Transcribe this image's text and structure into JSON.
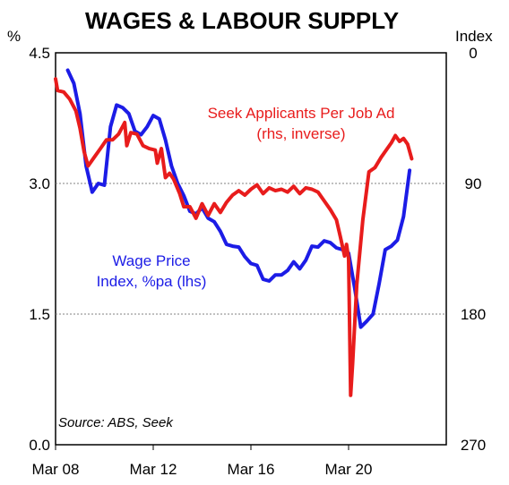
{
  "chart_data": {
    "type": "line",
    "title": "WAGES & LABOUR SUPPLY",
    "left_axis": {
      "unit": "%",
      "ylim": [
        0,
        4.5
      ],
      "ticks": [
        0,
        1.5,
        3.0,
        4.5
      ],
      "tick_labels": [
        "0.0",
        "1.5",
        "3.0",
        "4.5"
      ]
    },
    "right_axis": {
      "unit": "Index",
      "ylim": [
        0,
        270
      ],
      "inverted": true,
      "ticks": [
        0,
        90,
        180,
        270
      ],
      "tick_labels": [
        "0",
        "90",
        "180",
        "270"
      ]
    },
    "x_axis": {
      "range": [
        "2008-03",
        "2024-03"
      ],
      "ticks": [
        "2008-03",
        "2012-03",
        "2016-03",
        "2020-03"
      ],
      "tick_labels": [
        "Mar 08",
        "Mar 12",
        "Mar 16",
        "Mar 20"
      ]
    },
    "grid": {
      "horizontal_dotted": [
        1.5,
        3.0
      ]
    },
    "series": [
      {
        "name": "Wage Price Index, %pa (lhs)",
        "axis": "left",
        "color": "#1c1ce6",
        "label_lines": [
          "Wage Price",
          "Index, %pa (lhs)"
        ],
        "points": [
          [
            "2008-09",
            4.3
          ],
          [
            "2008-12",
            4.15
          ],
          [
            "2009-03",
            3.8
          ],
          [
            "2009-06",
            3.2
          ],
          [
            "2009-09",
            2.9
          ],
          [
            "2009-12",
            3.0
          ],
          [
            "2010-03",
            2.98
          ],
          [
            "2010-06",
            3.65
          ],
          [
            "2010-09",
            3.9
          ],
          [
            "2010-12",
            3.87
          ],
          [
            "2011-03",
            3.8
          ],
          [
            "2011-06",
            3.6
          ],
          [
            "2011-09",
            3.56
          ],
          [
            "2011-12",
            3.65
          ],
          [
            "2012-03",
            3.78
          ],
          [
            "2012-06",
            3.74
          ],
          [
            "2012-09",
            3.5
          ],
          [
            "2012-12",
            3.2
          ],
          [
            "2013-03",
            3.0
          ],
          [
            "2013-06",
            2.86
          ],
          [
            "2013-09",
            2.68
          ],
          [
            "2013-12",
            2.65
          ],
          [
            "2014-03",
            2.72
          ],
          [
            "2014-06",
            2.6
          ],
          [
            "2014-09",
            2.56
          ],
          [
            "2014-12",
            2.45
          ],
          [
            "2015-03",
            2.3
          ],
          [
            "2015-06",
            2.28
          ],
          [
            "2015-09",
            2.27
          ],
          [
            "2015-12",
            2.16
          ],
          [
            "2016-03",
            2.08
          ],
          [
            "2016-06",
            2.06
          ],
          [
            "2016-09",
            1.9
          ],
          [
            "2016-12",
            1.88
          ],
          [
            "2017-03",
            1.95
          ],
          [
            "2017-06",
            1.95
          ],
          [
            "2017-09",
            2.0
          ],
          [
            "2017-12",
            2.1
          ],
          [
            "2018-03",
            2.02
          ],
          [
            "2018-06",
            2.12
          ],
          [
            "2018-09",
            2.28
          ],
          [
            "2018-12",
            2.27
          ],
          [
            "2019-03",
            2.34
          ],
          [
            "2019-06",
            2.32
          ],
          [
            "2019-09",
            2.26
          ],
          [
            "2019-12",
            2.24
          ],
          [
            "2020-03",
            2.2
          ],
          [
            "2020-06",
            1.8
          ],
          [
            "2020-09",
            1.35
          ],
          [
            "2020-12",
            1.42
          ],
          [
            "2021-03",
            1.5
          ],
          [
            "2021-06",
            1.85
          ],
          [
            "2021-09",
            2.24
          ],
          [
            "2021-12",
            2.28
          ],
          [
            "2022-03",
            2.35
          ],
          [
            "2022-06",
            2.62
          ],
          [
            "2022-09",
            3.15
          ]
        ]
      },
      {
        "name": "Seek Applicants Per Job Ad (rhs, inverse)",
        "axis": "right",
        "color": "#e81c1c",
        "label_lines": [
          "Seek Applicants Per Job Ad",
          "(rhs, inverse)"
        ],
        "points": [
          [
            "2008-03",
            18
          ],
          [
            "2008-04",
            26
          ],
          [
            "2008-07",
            27
          ],
          [
            "2008-10",
            32
          ],
          [
            "2009-01",
            40
          ],
          [
            "2009-03",
            52
          ],
          [
            "2009-05",
            68
          ],
          [
            "2009-07",
            78
          ],
          [
            "2009-10",
            72
          ],
          [
            "2010-01",
            66
          ],
          [
            "2010-04",
            60
          ],
          [
            "2010-07",
            60
          ],
          [
            "2010-10",
            56
          ],
          [
            "2011-01",
            48
          ],
          [
            "2011-02",
            64
          ],
          [
            "2011-04",
            55
          ],
          [
            "2011-07",
            56
          ],
          [
            "2011-10",
            64
          ],
          [
            "2012-01",
            66
          ],
          [
            "2012-04",
            67
          ],
          [
            "2012-05",
            76
          ],
          [
            "2012-07",
            66
          ],
          [
            "2012-09",
            86
          ],
          [
            "2012-11",
            83
          ],
          [
            "2013-01",
            87
          ],
          [
            "2013-04",
            97
          ],
          [
            "2013-06",
            106
          ],
          [
            "2013-09",
            106
          ],
          [
            "2013-12",
            114
          ],
          [
            "2014-03",
            104
          ],
          [
            "2014-06",
            112
          ],
          [
            "2014-09",
            104
          ],
          [
            "2014-12",
            110
          ],
          [
            "2015-03",
            103
          ],
          [
            "2015-06",
            98
          ],
          [
            "2015-09",
            95
          ],
          [
            "2015-12",
            98
          ],
          [
            "2016-03",
            94
          ],
          [
            "2016-06",
            91
          ],
          [
            "2016-09",
            97
          ],
          [
            "2016-12",
            93
          ],
          [
            "2017-03",
            95
          ],
          [
            "2017-06",
            94
          ],
          [
            "2017-09",
            96
          ],
          [
            "2017-12",
            92
          ],
          [
            "2018-03",
            97
          ],
          [
            "2018-06",
            93
          ],
          [
            "2018-09",
            94
          ],
          [
            "2018-12",
            96
          ],
          [
            "2019-03",
            102
          ],
          [
            "2019-06",
            108
          ],
          [
            "2019-09",
            115
          ],
          [
            "2019-11",
            127
          ],
          [
            "2020-01",
            140
          ],
          [
            "2020-02",
            132
          ],
          [
            "2020-03",
            142
          ],
          [
            "2020-04",
            236
          ],
          [
            "2020-05",
            214
          ],
          [
            "2020-07",
            160
          ],
          [
            "2020-10",
            115
          ],
          [
            "2021-01",
            82
          ],
          [
            "2021-04",
            79
          ],
          [
            "2021-07",
            72
          ],
          [
            "2021-10",
            66
          ],
          [
            "2021-12",
            62
          ],
          [
            "2022-02",
            57
          ],
          [
            "2022-04",
            61
          ],
          [
            "2022-06",
            59
          ],
          [
            "2022-08",
            63
          ],
          [
            "2022-10",
            73
          ]
        ]
      }
    ],
    "annotations": [
      {
        "text": "Source: ABS, Seek"
      }
    ]
  },
  "colors": {
    "background": "#ffffff",
    "frame": "#000000",
    "grid": "#808080"
  }
}
